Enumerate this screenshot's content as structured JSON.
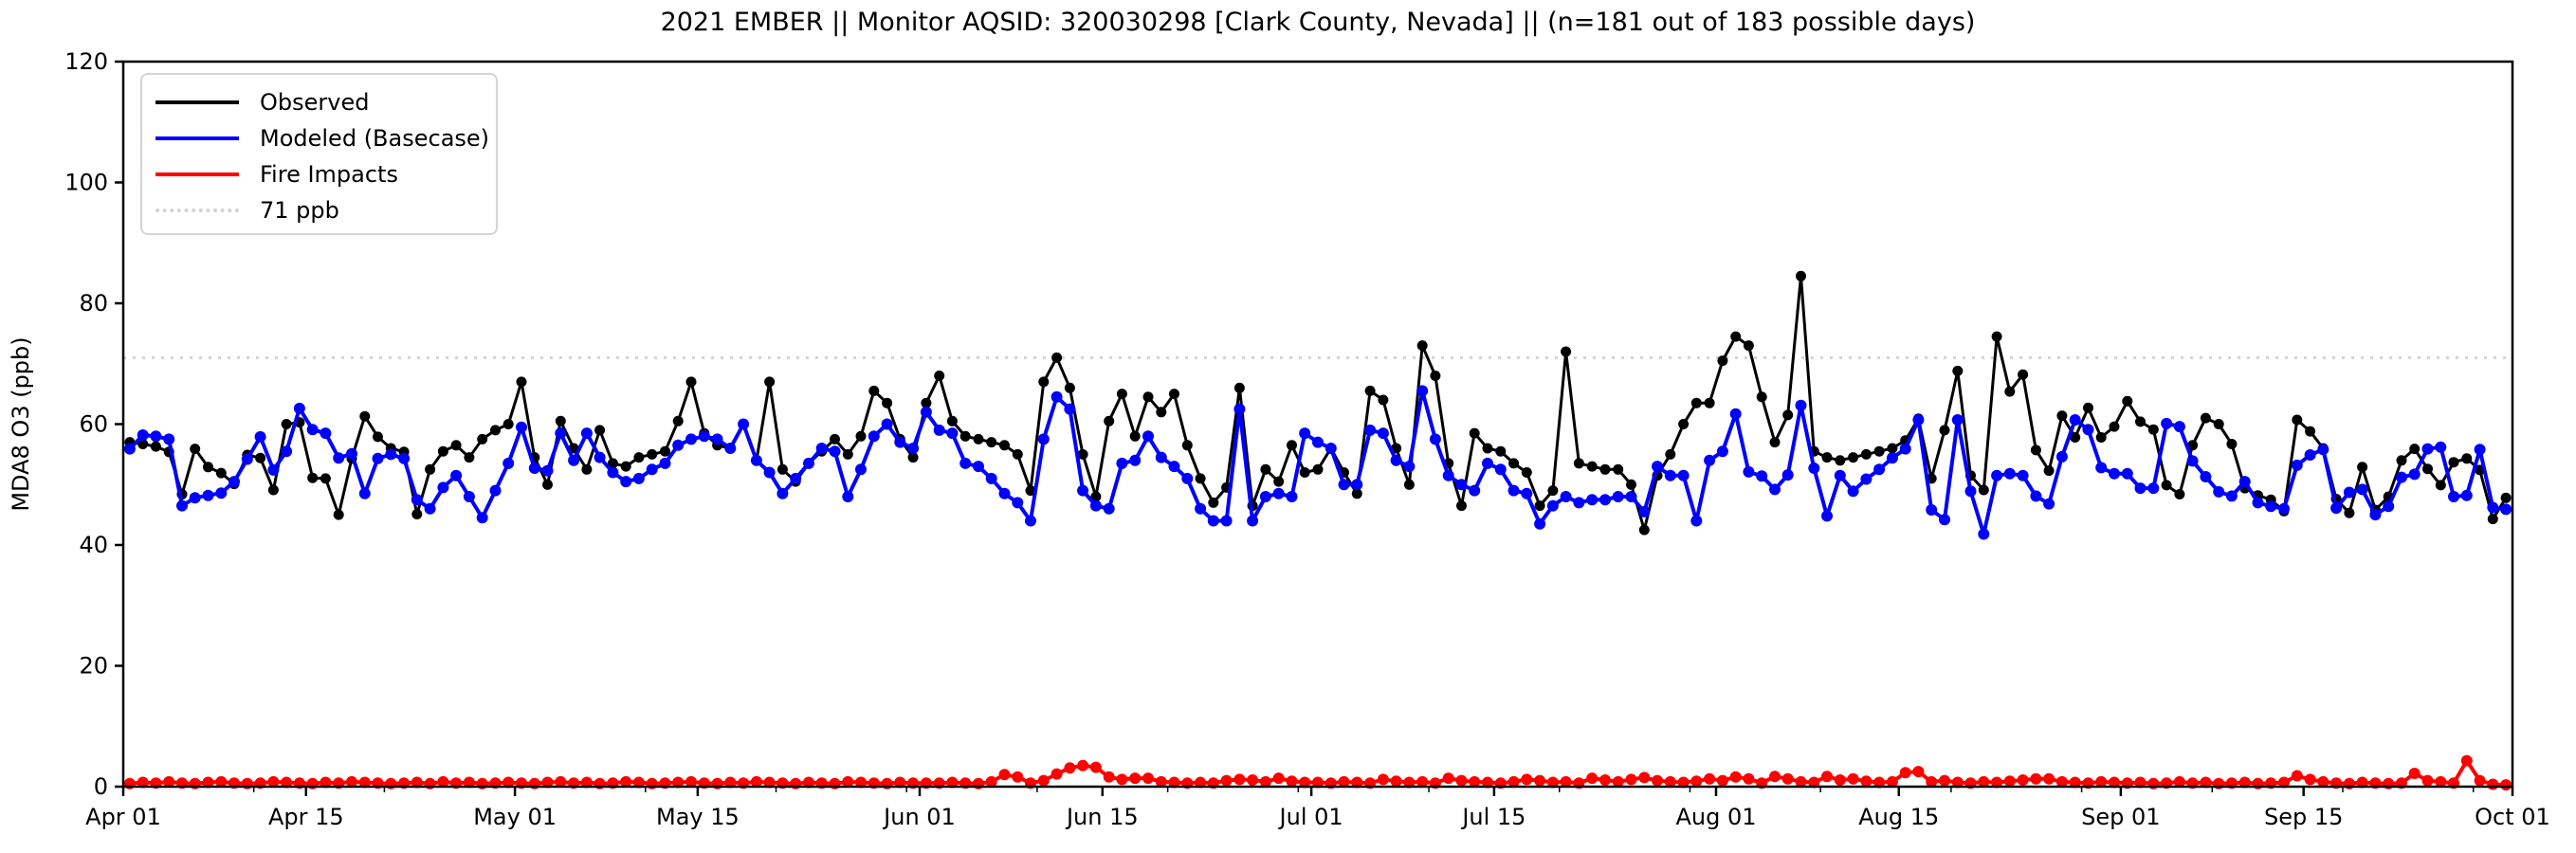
{
  "title": "2021 EMBER || Monitor AQSID: 320030298 [Clark County, Nevada] || (n=181 out of 183 possible days)",
  "legend": {
    "items": [
      {
        "label": "Observed",
        "color": "#000000",
        "style": "solid"
      },
      {
        "label": "Modeled (Basecase)",
        "color": "#0000ff",
        "style": "solid"
      },
      {
        "label": "Fire Impacts",
        "color": "#ff0000",
        "style": "solid"
      },
      {
        "label": "71 ppb",
        "color": "#d3d3d3",
        "style": "dotted"
      }
    ]
  },
  "chart_data": {
    "type": "line",
    "title": "2021 EMBER || Monitor AQSID: 320030298 [Clark County, Nevada] || (n=181 out of 183 possible days)",
    "xlabel": "",
    "ylabel": "MDA8 O3 (ppb)",
    "ylim": [
      0,
      120
    ],
    "yticks": [
      0,
      20,
      40,
      60,
      80,
      100,
      120
    ],
    "x_days_total": 183,
    "x_start": "Apr 01",
    "x_end": "Oct 01",
    "xtick_labels": [
      "Apr 01",
      "Apr 15",
      "May 01",
      "May 15",
      "Jun 01",
      "Jun 15",
      "Jul 01",
      "Jul 15",
      "Aug 01",
      "Aug 15",
      "Sep 01",
      "Sep 15",
      "Oct 01"
    ],
    "xtick_day_offsets": [
      0,
      14,
      30,
      44,
      61,
      75,
      91,
      105,
      122,
      136,
      153,
      167,
      183
    ],
    "grid": false,
    "legend_position": "upper-left",
    "reference_line": {
      "value": 71,
      "label": "71 ppb",
      "color": "#d3d3d3",
      "style": "dotted"
    },
    "series": [
      {
        "name": "Observed",
        "color": "#000000",
        "marker": "circle",
        "values": [
          57,
          56.7,
          56.3,
          55.4,
          48.4,
          55.9,
          52.9,
          51.9,
          50.1,
          54.9,
          54.4,
          49.1,
          60,
          60.3,
          51.1,
          51,
          45,
          54.3,
          61.3,
          57.9,
          56,
          55.4,
          45.1,
          52.5,
          55.5,
          56.5,
          54.5,
          57.5,
          59,
          60,
          67,
          54.5,
          50,
          60.5,
          56,
          52.5,
          59,
          53.5,
          53,
          54.5,
          55,
          55.5,
          60.5,
          67,
          58.5,
          56.5,
          56,
          60,
          54,
          67,
          52.5,
          50.5,
          53.5,
          55.5,
          57.5,
          55,
          58,
          65.5,
          63.5,
          57.5,
          54.5,
          63.5,
          68,
          60.5,
          58,
          57.5,
          57,
          56.5,
          55,
          49,
          67,
          71,
          66,
          55,
          48,
          60.5,
          65,
          58,
          64.5,
          62,
          65,
          56.5,
          51,
          47,
          49.5,
          66,
          46.5,
          52.5,
          50.5,
          56.5,
          52,
          52.5,
          56,
          52,
          48.5,
          65.5,
          64,
          56,
          50,
          73,
          68,
          53.5,
          46.5,
          58.5,
          56,
          55.5,
          53.5,
          52,
          46.5,
          49,
          72,
          53.5,
          53,
          52.5,
          52.5,
          50,
          42.5,
          51.5,
          55,
          60,
          63.5,
          63.5,
          70.5,
          74.5,
          73,
          64.5,
          57,
          61.5,
          84.5,
          55.5,
          54.5,
          54,
          54.5,
          55,
          55.5,
          56,
          57.3,
          60.9,
          51,
          59,
          68.8,
          51.5,
          49.1,
          74.5,
          65.4,
          68.2,
          55.7,
          52.3,
          61.4,
          57.8,
          62.7,
          57.8,
          59.6,
          63.8,
          60.4,
          59.1,
          49.9,
          48.4,
          56.5,
          61,
          60,
          56.7,
          49.4,
          48.2,
          47.5,
          45.6,
          60.7,
          58.8,
          56,
          47.6,
          45.3,
          52.9,
          45.8,
          48,
          54,
          55.9,
          52.6,
          49.9,
          53.7,
          54.3,
          52.4,
          44.3,
          47.8
        ]
      },
      {
        "name": "Modeled (Basecase)",
        "color": "#0000ff",
        "marker": "circle",
        "values": [
          55.9,
          58.2,
          58,
          57.5,
          46.5,
          47.8,
          48.2,
          48.6,
          50.5,
          54.2,
          57.9,
          52.4,
          55.5,
          62.6,
          59.1,
          58.5,
          54.4,
          55.1,
          48.5,
          54.3,
          55,
          54.3,
          47.5,
          46,
          49.5,
          51.5,
          48,
          44.5,
          49,
          53.5,
          59.5,
          52.7,
          52.3,
          58.5,
          54,
          58.5,
          54.5,
          52,
          50.5,
          51,
          52.5,
          53.5,
          56.5,
          57.5,
          58,
          57.5,
          56,
          60,
          54,
          52,
          48.5,
          51,
          53.5,
          56,
          55.5,
          48,
          52.5,
          58,
          60,
          57,
          56,
          62,
          59,
          58.5,
          53.5,
          53,
          51,
          48.5,
          47,
          44,
          57.5,
          64.5,
          62.5,
          49,
          46.5,
          46,
          53.5,
          54,
          58,
          54.5,
          53,
          51,
          46,
          44,
          44,
          62.5,
          44,
          48,
          48.5,
          48,
          58.5,
          57,
          56,
          50,
          50,
          59,
          58.5,
          54,
          53,
          65.5,
          57.5,
          51.5,
          50,
          49,
          53.5,
          52.5,
          49,
          48.5,
          43.5,
          46.5,
          48,
          47,
          47.5,
          47.5,
          48,
          48,
          45.5,
          53,
          51.5,
          51.5,
          44,
          54,
          55.5,
          61.7,
          52.1,
          51.4,
          49.2,
          51.6,
          63.1,
          52.7,
          44.8,
          51.5,
          48.9,
          50.9,
          52.5,
          54.4,
          55.9,
          60.7,
          45.8,
          44.2,
          60.7,
          48.9,
          41.8,
          51.5,
          51.8,
          51.5,
          48.1,
          46.8,
          54.6,
          60.7,
          59.1,
          52.8,
          51.8,
          51.8,
          49.4,
          49.4,
          60.1,
          59.6,
          53.9,
          51.3,
          48.8,
          48.1,
          50.5,
          47,
          46.4,
          46,
          53.2,
          54.9,
          55.8,
          46.1,
          48.7,
          49.2,
          45,
          46.4,
          51.2,
          51.7,
          55.9,
          56.2,
          48,
          48.2,
          55.8,
          46.2,
          45.9
        ]
      },
      {
        "name": "Fire Impacts",
        "color": "#ff0000",
        "marker": "circle",
        "values": [
          0.5,
          0.7,
          0.6,
          0.8,
          0.6,
          0.5,
          0.7,
          0.8,
          0.6,
          0.5,
          0.6,
          0.8,
          0.7,
          0.6,
          0.5,
          0.7,
          0.6,
          0.8,
          0.7,
          0.6,
          0.5,
          0.6,
          0.7,
          0.5,
          0.8,
          0.6,
          0.7,
          0.5,
          0.6,
          0.7,
          0.6,
          0.5,
          0.7,
          0.8,
          0.6,
          0.7,
          0.5,
          0.6,
          0.8,
          0.7,
          0.5,
          0.6,
          0.7,
          0.8,
          0.6,
          0.5,
          0.7,
          0.6,
          0.8,
          0.7,
          0.6,
          0.5,
          0.7,
          0.6,
          0.5,
          0.8,
          0.7,
          0.6,
          0.5,
          0.7,
          0.6,
          0.6,
          0.6,
          0.7,
          0.6,
          0.5,
          0.8,
          2.0,
          1.6,
          0.6,
          1.0,
          2.1,
          3.1,
          3.5,
          3.2,
          1.6,
          1.2,
          1.4,
          1.4,
          0.8,
          0.7,
          0.6,
          0.7,
          0.6,
          1.0,
          1.2,
          1.1,
          0.8,
          1.4,
          0.9,
          0.7,
          0.7,
          0.6,
          0.8,
          0.7,
          0.6,
          1.2,
          0.9,
          0.7,
          0.8,
          0.6,
          1.4,
          1.0,
          0.8,
          0.7,
          0.6,
          0.8,
          1.2,
          1.0,
          0.7,
          0.8,
          0.6,
          1.4,
          1.1,
          0.8,
          1.2,
          1.5,
          1.0,
          0.8,
          0.7,
          0.9,
          1.3,
          1.0,
          1.6,
          1.3,
          0.6,
          1.7,
          1.3,
          0.8,
          0.7,
          1.7,
          1.1,
          1.3,
          0.9,
          0.7,
          0.8,
          2.3,
          2.5,
          0.8,
          1.0,
          0.7,
          0.6,
          0.8,
          0.7,
          0.9,
          1.1,
          1.3,
          1.3,
          0.8,
          0.7,
          0.6,
          0.8,
          0.7,
          0.6,
          0.7,
          0.5,
          0.6,
          0.8,
          0.6,
          0.7,
          0.5,
          0.6,
          0.7,
          0.5,
          0.6,
          0.7,
          1.8,
          1.2,
          0.8,
          0.6,
          0.5,
          0.7,
          0.6,
          0.5,
          0.6,
          2.2,
          1.0,
          0.8,
          0.6,
          4.3,
          1.0,
          0.4,
          0.3
        ]
      }
    ]
  }
}
